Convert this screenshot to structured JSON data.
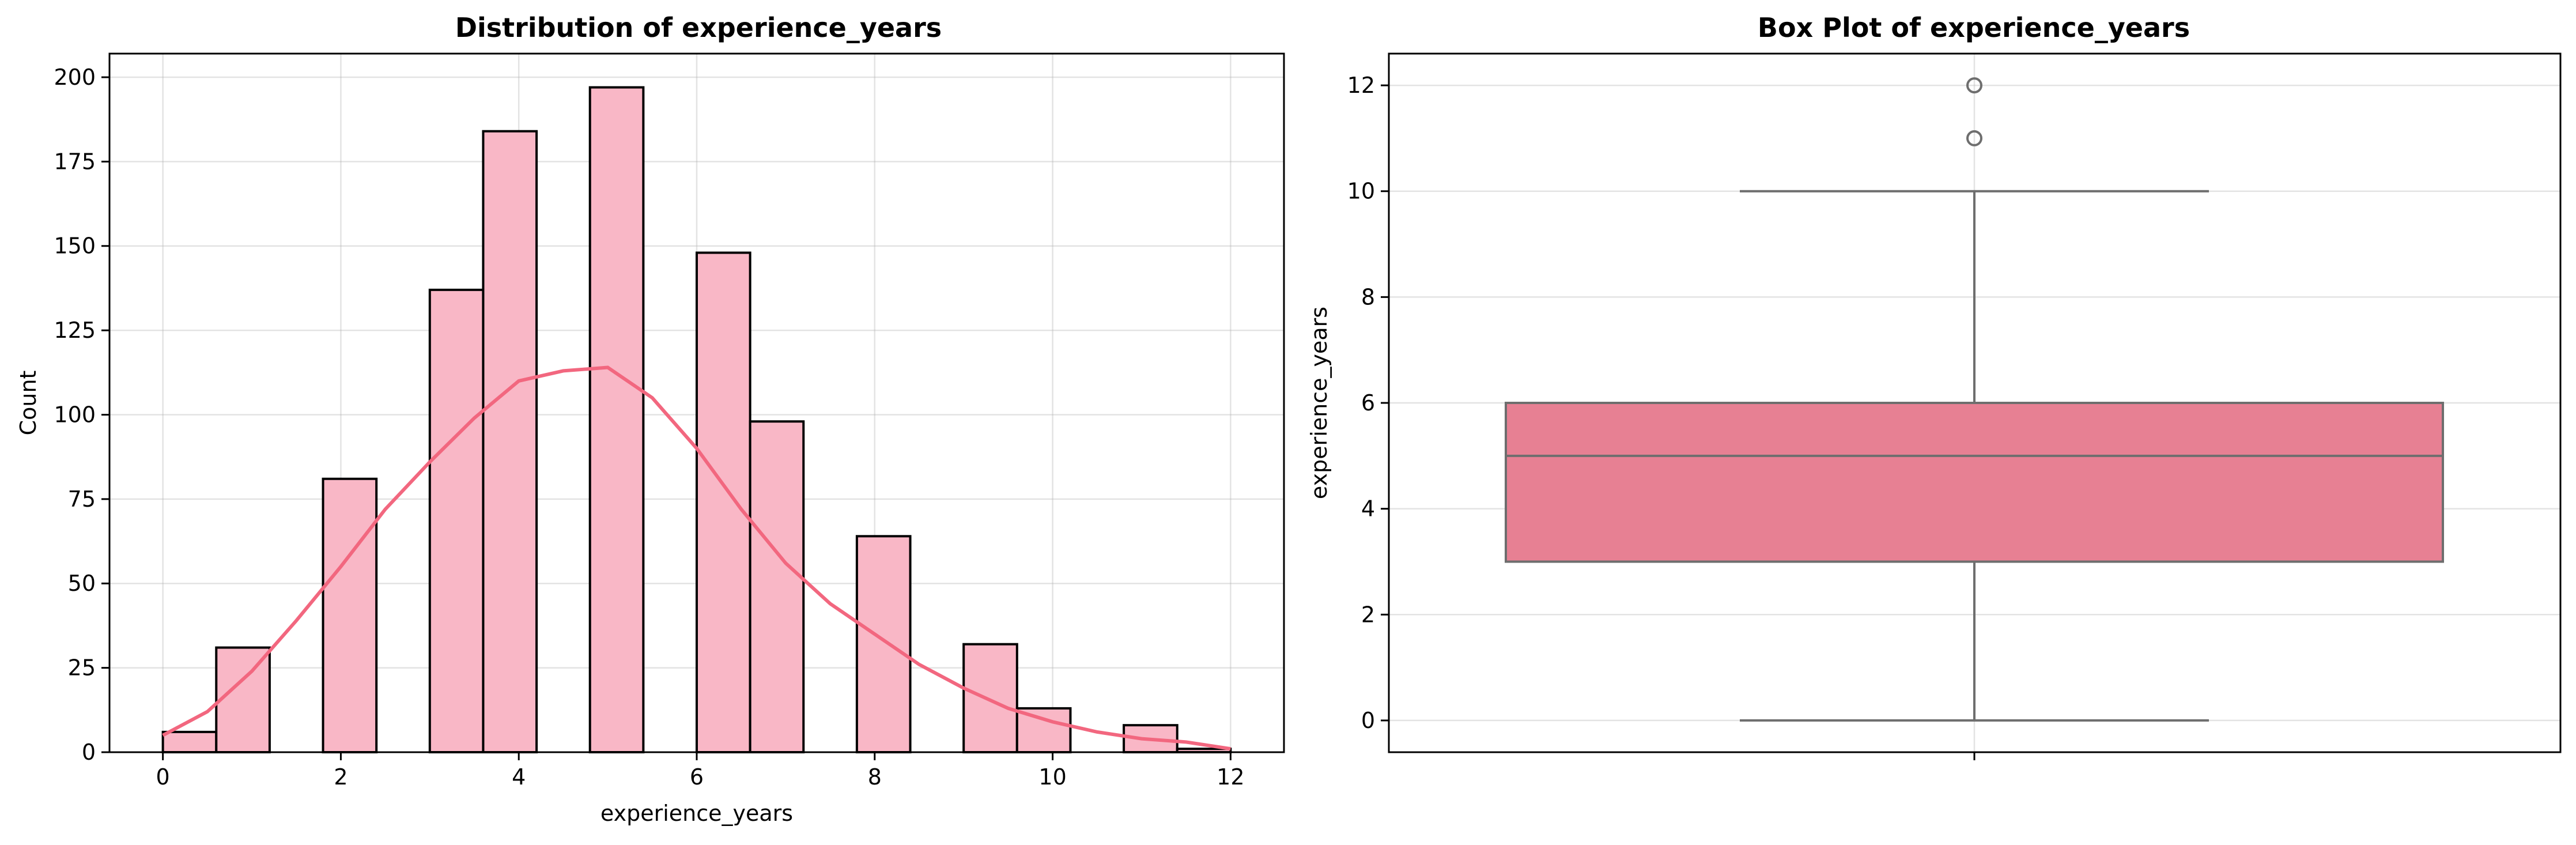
{
  "colors": {
    "bar_fill": "#f9b7c6",
    "bar_edge": "#000000",
    "kde_line": "#f2677f",
    "box_fill": "#e78093",
    "box_line": "#6e6e6e"
  },
  "chart_data": [
    {
      "type": "bar",
      "subtype": "histogram_with_kde",
      "title": "Distribution of experience_years",
      "xlabel": "experience_years",
      "ylabel": "Count",
      "xlim": [
        -0.6,
        12.6
      ],
      "ylim": [
        0,
        207
      ],
      "xticks": [
        0,
        2,
        4,
        6,
        8,
        10,
        12
      ],
      "yticks": [
        0,
        25,
        50,
        75,
        100,
        125,
        150,
        175,
        200
      ],
      "grid": true,
      "bin_width": 0.6,
      "bins": [
        {
          "x0": 0.0,
          "count": 6
        },
        {
          "x0": 0.6,
          "count": 31
        },
        {
          "x0": 1.8,
          "count": 81
        },
        {
          "x0": 3.0,
          "count": 137
        },
        {
          "x0": 3.6,
          "count": 184
        },
        {
          "x0": 4.8,
          "count": 197
        },
        {
          "x0": 6.0,
          "count": 148
        },
        {
          "x0": 6.6,
          "count": 98
        },
        {
          "x0": 7.8,
          "count": 64
        },
        {
          "x0": 9.0,
          "count": 32
        },
        {
          "x0": 9.6,
          "count": 13
        },
        {
          "x0": 10.8,
          "count": 8
        },
        {
          "x0": 11.4,
          "count": 1
        }
      ],
      "kde": {
        "x": [
          0,
          0.5,
          1,
          1.5,
          2,
          2.5,
          3,
          3.5,
          4,
          4.5,
          5,
          5.5,
          6,
          6.5,
          7,
          7.5,
          8,
          8.5,
          9,
          9.5,
          10,
          10.5,
          11,
          11.5,
          12
        ],
        "y": [
          5,
          12,
          24,
          39,
          55,
          72,
          86,
          99,
          110,
          113,
          114,
          105,
          90,
          72,
          56,
          44,
          35,
          26,
          19,
          13,
          9,
          6,
          4,
          3,
          1
        ]
      }
    },
    {
      "type": "box",
      "title": "Box Plot of experience_years",
      "xlabel": "",
      "ylabel": "experience_years",
      "ylim": [
        -0.6,
        12.6
      ],
      "yticks": [
        0,
        2,
        4,
        6,
        8,
        10,
        12
      ],
      "grid": true,
      "box": {
        "whisker_low": 0,
        "q1": 3,
        "median": 5,
        "q3": 6,
        "whisker_high": 10,
        "outliers": [
          11,
          12
        ]
      }
    }
  ]
}
